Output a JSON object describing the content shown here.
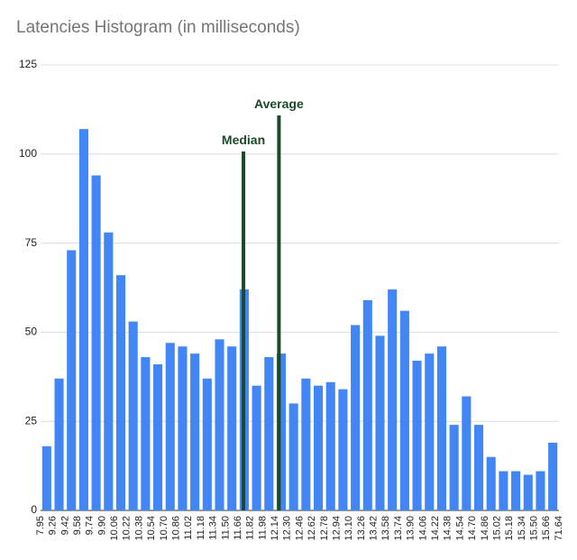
{
  "chart_data": {
    "type": "histogram",
    "title": "Latencies Histogram (in milliseconds)",
    "bins": [
      "7.95",
      "9.26",
      "9.42",
      "9.58",
      "9.74",
      "9.90",
      "10.06",
      "10.22",
      "10.38",
      "10.54",
      "10.70",
      "10.86",
      "11.02",
      "11.18",
      "11.34",
      "11.50",
      "11.66",
      "11.82",
      "11.98",
      "12.14",
      "12.30",
      "12.46",
      "12.62",
      "12.78",
      "12.94",
      "13.10",
      "13.26",
      "13.42",
      "13.58",
      "13.74",
      "13.90",
      "14.06",
      "14.22",
      "14.38",
      "14.54",
      "14.70",
      "14.86",
      "15.02",
      "15.18",
      "15.34",
      "15.50",
      "15.66",
      "71.64"
    ],
    "values": [
      18,
      37,
      73,
      107,
      94,
      78,
      66,
      53,
      43,
      41,
      47,
      46,
      44,
      37,
      48,
      46,
      62,
      35,
      43,
      44,
      30,
      37,
      35,
      36,
      34,
      52,
      59,
      49,
      62,
      56,
      42,
      44,
      46,
      24,
      32,
      24,
      15,
      11,
      11,
      10,
      11,
      19
    ],
    "color": "#4285f4",
    "ylim": [
      0,
      125
    ],
    "yticks": [
      0,
      25,
      50,
      75,
      100,
      125
    ],
    "grid": true,
    "annotations": [
      {
        "label": "Median",
        "x": 11.73,
        "color": "#1b4a2a"
      },
      {
        "label": "Average",
        "x": 12.19,
        "color": "#1b4a2a"
      }
    ]
  }
}
